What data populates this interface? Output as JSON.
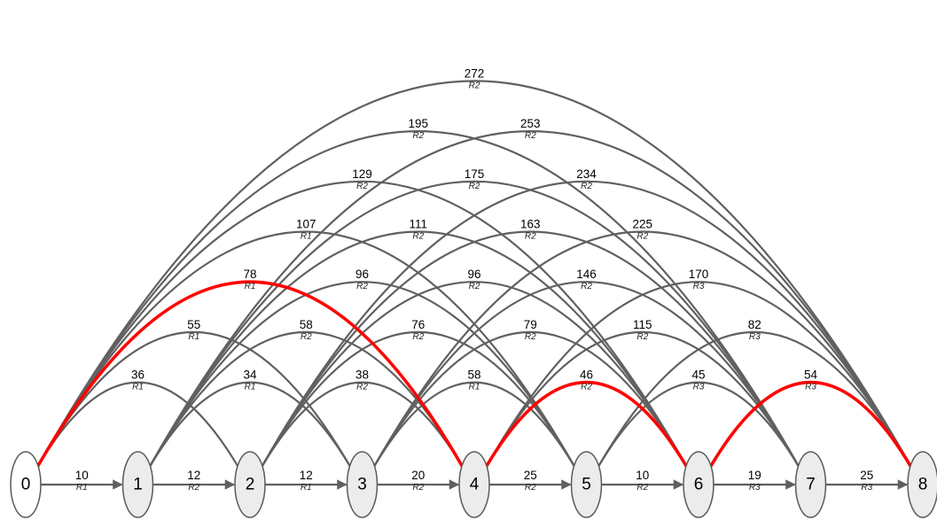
{
  "nodes": [
    "0",
    "1",
    "2",
    "3",
    "4",
    "5",
    "6",
    "7",
    "8"
  ],
  "edges": [
    {
      "from": 0,
      "to": 1,
      "weight": "10",
      "route": "R1"
    },
    {
      "from": 1,
      "to": 2,
      "weight": "12",
      "route": "R2"
    },
    {
      "from": 2,
      "to": 3,
      "weight": "12",
      "route": "R1"
    },
    {
      "from": 3,
      "to": 4,
      "weight": "20",
      "route": "R2"
    },
    {
      "from": 4,
      "to": 5,
      "weight": "25",
      "route": "R2"
    },
    {
      "from": 5,
      "to": 6,
      "weight": "10",
      "route": "R2"
    },
    {
      "from": 6,
      "to": 7,
      "weight": "19",
      "route": "R3"
    },
    {
      "from": 7,
      "to": 8,
      "weight": "25",
      "route": "R3"
    },
    {
      "from": 0,
      "to": 2,
      "weight": "36",
      "route": "R1"
    },
    {
      "from": 1,
      "to": 3,
      "weight": "34",
      "route": "R1"
    },
    {
      "from": 2,
      "to": 4,
      "weight": "38",
      "route": "R2"
    },
    {
      "from": 3,
      "to": 5,
      "weight": "58",
      "route": "R1"
    },
    {
      "from": 4,
      "to": 6,
      "weight": "46",
      "route": "R2",
      "highlight": true
    },
    {
      "from": 5,
      "to": 7,
      "weight": "45",
      "route": "R3"
    },
    {
      "from": 6,
      "to": 8,
      "weight": "54",
      "route": "R3",
      "highlight": true
    },
    {
      "from": 0,
      "to": 3,
      "weight": "55",
      "route": "R1"
    },
    {
      "from": 1,
      "to": 4,
      "weight": "58",
      "route": "R2"
    },
    {
      "from": 2,
      "to": 5,
      "weight": "76",
      "route": "R2"
    },
    {
      "from": 3,
      "to": 6,
      "weight": "79",
      "route": "R2"
    },
    {
      "from": 4,
      "to": 7,
      "weight": "115",
      "route": "R2"
    },
    {
      "from": 5,
      "to": 8,
      "weight": "82",
      "route": "R3"
    },
    {
      "from": 0,
      "to": 4,
      "weight": "78",
      "route": "R1",
      "highlight": true
    },
    {
      "from": 1,
      "to": 5,
      "weight": "96",
      "route": "R2"
    },
    {
      "from": 2,
      "to": 6,
      "weight": "96",
      "route": "R2"
    },
    {
      "from": 3,
      "to": 7,
      "weight": "146",
      "route": "R2"
    },
    {
      "from": 4,
      "to": 8,
      "weight": "170",
      "route": "R3"
    },
    {
      "from": 0,
      "to": 5,
      "weight": "107",
      "route": "R1"
    },
    {
      "from": 1,
      "to": 6,
      "weight": "111",
      "route": "R2"
    },
    {
      "from": 2,
      "to": 7,
      "weight": "163",
      "route": "R2"
    },
    {
      "from": 3,
      "to": 8,
      "weight": "225",
      "route": "R2"
    },
    {
      "from": 0,
      "to": 6,
      "weight": "129",
      "route": "R2"
    },
    {
      "from": 1,
      "to": 7,
      "weight": "175",
      "route": "R2"
    },
    {
      "from": 2,
      "to": 8,
      "weight": "234",
      "route": "R2"
    },
    {
      "from": 0,
      "to": 7,
      "weight": "195",
      "route": "R2"
    },
    {
      "from": 1,
      "to": 8,
      "weight": "253",
      "route": "R2"
    },
    {
      "from": 0,
      "to": 8,
      "weight": "272",
      "route": "R2"
    }
  ],
  "colors": {
    "edge": "#606060",
    "highlight": "#ff0000",
    "node_fill": "#ececec",
    "start_node_fill": "#ffffff",
    "node_stroke": "#5a5a5a"
  }
}
